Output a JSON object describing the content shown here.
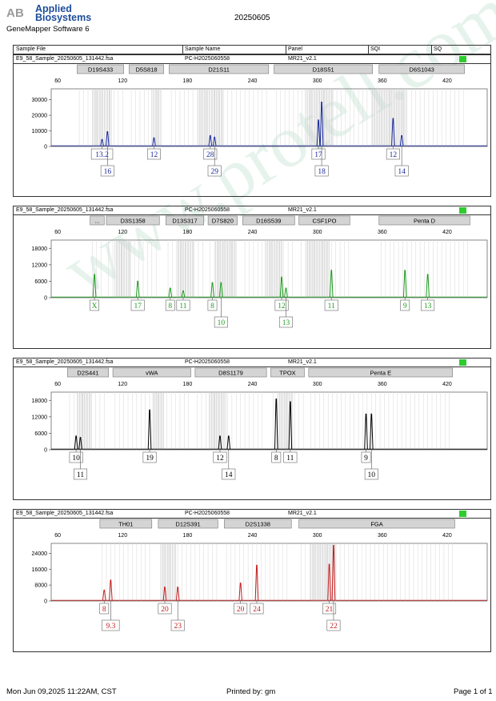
{
  "header": {
    "brand_line1": "Applied",
    "brand_line2": "Biosystems",
    "software": "GeneMapper Software 6",
    "date": "20250605"
  },
  "columns": [
    "Sample File",
    "Sample Name",
    "Panel",
    "SQI",
    "SQ"
  ],
  "footer": {
    "left": "Mon Jun 09,2025 11:22AM, CST",
    "mid": "Printed by: gm",
    "right": "Page 1 of 1"
  },
  "watermark": "www.protell.com.cn",
  "colors": {
    "blue": "#1a2a9a",
    "green": "#1f9a1f",
    "black": "#000000",
    "red": "#c41e1e",
    "bin": "#cccccc",
    "sqi": "#2ecc2e"
  },
  "panels": [
    {
      "sample_file": "E9_58_Sample_20250605_131442.fsa",
      "sample_name": "PC-H2025060558",
      "panel_name": "MR21_v2.1",
      "color": "blue",
      "markers": [
        {
          "name": "D19S433",
          "start": 78,
          "end": 121
        },
        {
          "name": "D5S818",
          "start": 126,
          "end": 158
        },
        {
          "name": "D21S11",
          "start": 163,
          "end": 255
        },
        {
          "name": "D18S51",
          "start": 260,
          "end": 351
        },
        {
          "name": "D6S1043",
          "start": 357,
          "end": 436
        }
      ],
      "chart_data": {
        "type": "line",
        "xlabel": "",
        "ylabel": "",
        "x_ticks": [
          60,
          120,
          180,
          240,
          300,
          360,
          420
        ],
        "y_ticks": [
          10000,
          20000,
          30000
        ],
        "xlim": [
          54,
          457
        ],
        "ylim": [
          0,
          37000
        ],
        "bins": [
          [
            92,
            110
          ],
          [
            147,
            155
          ],
          [
            190,
            214
          ],
          [
            289,
            315
          ],
          [
            351,
            382
          ]
        ],
        "peaks": [
          {
            "x": 101,
            "y": 4500
          },
          {
            "x": 106,
            "y": 9500
          },
          {
            "x": 149,
            "y": 5500
          },
          {
            "x": 201,
            "y": 7000
          },
          {
            "x": 205,
            "y": 6000
          },
          {
            "x": 301,
            "y": 17000
          },
          {
            "x": 304,
            "y": 28500
          },
          {
            "x": 370,
            "y": 18000
          },
          {
            "x": 378,
            "y": 7000
          }
        ],
        "alleles": [
          {
            "label": "13.2",
            "x": 101,
            "row": 0
          },
          {
            "label": "16",
            "x": 106,
            "row": 1
          },
          {
            "label": "12",
            "x": 149,
            "row": 0
          },
          {
            "label": "28",
            "x": 201,
            "row": 0
          },
          {
            "label": "29",
            "x": 205,
            "row": 1
          },
          {
            "label": "17",
            "x": 301,
            "row": 0
          },
          {
            "label": "18",
            "x": 304,
            "row": 1
          },
          {
            "label": "12",
            "x": 370,
            "row": 0
          },
          {
            "label": "14",
            "x": 378,
            "row": 1
          }
        ]
      }
    },
    {
      "sample_file": "E9_58_Sample_20250605_131442.fsa",
      "sample_name": "PC-H2025060558",
      "panel_name": "MR21_v2.1",
      "color": "green",
      "markers": [
        {
          "name": "...",
          "start": 90,
          "end": 103
        },
        {
          "name": "D3S1358",
          "start": 105,
          "end": 154
        },
        {
          "name": "D13S317",
          "start": 160,
          "end": 195
        },
        {
          "name": "D7S820",
          "start": 199,
          "end": 226
        },
        {
          "name": "D16S539",
          "start": 231,
          "end": 279
        },
        {
          "name": "CSF1PO",
          "start": 283,
          "end": 330
        },
        {
          "name": "Penta D",
          "start": 357,
          "end": 441
        }
      ],
      "chart_data": {
        "type": "line",
        "xlabel": "",
        "ylabel": "",
        "x_ticks": [
          60,
          120,
          180,
          240,
          300,
          360,
          420
        ],
        "y_ticks": [
          6000,
          12000,
          18000
        ],
        "xlim": [
          54,
          457
        ],
        "ylim": [
          0,
          21000
        ],
        "bins": [
          [
            113,
            128
          ],
          [
            170,
            186
          ],
          [
            205,
            225
          ],
          [
            252,
            268
          ],
          [
            290,
            312
          ]
        ],
        "peaks": [
          {
            "x": 94,
            "y": 8500
          },
          {
            "x": 134,
            "y": 6000
          },
          {
            "x": 164,
            "y": 3500
          },
          {
            "x": 176,
            "y": 2500
          },
          {
            "x": 203,
            "y": 5500
          },
          {
            "x": 211,
            "y": 5500
          },
          {
            "x": 267,
            "y": 7500
          },
          {
            "x": 271,
            "y": 3500
          },
          {
            "x": 313,
            "y": 10000
          },
          {
            "x": 381,
            "y": 10000
          },
          {
            "x": 402,
            "y": 8500
          }
        ],
        "alleles": [
          {
            "label": "X",
            "x": 94,
            "row": 0
          },
          {
            "label": "17",
            "x": 134,
            "row": 0
          },
          {
            "label": "8",
            "x": 164,
            "row": 0
          },
          {
            "label": "11",
            "x": 176,
            "row": 0
          },
          {
            "label": "8",
            "x": 203,
            "row": 0
          },
          {
            "label": "10",
            "x": 211,
            "row": 1
          },
          {
            "label": "12",
            "x": 267,
            "row": 0
          },
          {
            "label": "13",
            "x": 271,
            "row": 1
          },
          {
            "label": "11",
            "x": 313,
            "row": 0
          },
          {
            "label": "9",
            "x": 381,
            "row": 0
          },
          {
            "label": "13",
            "x": 402,
            "row": 0
          }
        ]
      }
    },
    {
      "sample_file": "E9_58_Sample_20250605_131442.fsa",
      "sample_name": "PC-H2025060558",
      "panel_name": "MR21_v2.1",
      "color": "black",
      "markers": [
        {
          "name": "D2S441",
          "start": 69,
          "end": 107
        },
        {
          "name": "vWA",
          "start": 111,
          "end": 183
        },
        {
          "name": "D8S1179",
          "start": 187,
          "end": 253
        },
        {
          "name": "TPOX",
          "start": 257,
          "end": 288
        },
        {
          "name": "Penta E",
          "start": 292,
          "end": 425
        }
      ],
      "chart_data": {
        "type": "line",
        "xlabel": "",
        "ylabel": "",
        "x_ticks": [
          60,
          120,
          180,
          240,
          300,
          360,
          420
        ],
        "y_ticks": [
          6000,
          12000,
          18000
        ],
        "xlim": [
          54,
          457
        ],
        "ylim": [
          0,
          21000
        ],
        "bins": [
          [
            78,
            92
          ],
          [
            148,
            158
          ],
          [
            200,
            216
          ],
          [
            264,
            278
          ]
        ],
        "peaks": [
          {
            "x": 77,
            "y": 5000
          },
          {
            "x": 81,
            "y": 4500
          },
          {
            "x": 145,
            "y": 14500
          },
          {
            "x": 210,
            "y": 5000
          },
          {
            "x": 218,
            "y": 5000
          },
          {
            "x": 262,
            "y": 18500
          },
          {
            "x": 275,
            "y": 17500
          },
          {
            "x": 345,
            "y": 13000
          },
          {
            "x": 350,
            "y": 13000
          }
        ],
        "alleles": [
          {
            "label": "10",
            "x": 77,
            "row": 0
          },
          {
            "label": "11",
            "x": 81,
            "row": 1
          },
          {
            "label": "19",
            "x": 145,
            "row": 0
          },
          {
            "label": "12",
            "x": 210,
            "row": 0
          },
          {
            "label": "14",
            "x": 218,
            "row": 1
          },
          {
            "label": "8",
            "x": 262,
            "row": 0
          },
          {
            "label": "11",
            "x": 275,
            "row": 0
          },
          {
            "label": "9",
            "x": 345,
            "row": 0
          },
          {
            "label": "10",
            "x": 350,
            "row": 1
          }
        ]
      }
    },
    {
      "sample_file": "E9_58_Sample_20250605_131442.fsa",
      "sample_name": "PC-H2025060558",
      "panel_name": "MR21_v2.1",
      "color": "red",
      "markers": [
        {
          "name": "TH01",
          "start": 99,
          "end": 147
        },
        {
          "name": "D12S391",
          "start": 153,
          "end": 208
        },
        {
          "name": "D2S1338",
          "start": 214,
          "end": 276
        },
        {
          "name": "FGA",
          "start": 283,
          "end": 427
        }
      ],
      "chart_data": {
        "type": "line",
        "xlabel": "",
        "ylabel": "",
        "x_ticks": [
          60,
          120,
          180,
          240,
          300,
          360,
          420
        ],
        "y_ticks": [
          8000,
          16000,
          24000
        ],
        "xlim": [
          54,
          457
        ],
        "ylim": [
          0,
          29000
        ],
        "bins": [
          [
            156,
            170
          ],
          [
            293,
            318
          ]
        ],
        "peaks": [
          {
            "x": 103,
            "y": 5500
          },
          {
            "x": 109,
            "y": 10500
          },
          {
            "x": 159,
            "y": 7000
          },
          {
            "x": 171,
            "y": 7000
          },
          {
            "x": 229,
            "y": 9000
          },
          {
            "x": 244,
            "y": 18000
          },
          {
            "x": 311,
            "y": 18500
          },
          {
            "x": 315,
            "y": 28000
          }
        ],
        "alleles": [
          {
            "label": "8",
            "x": 103,
            "row": 0
          },
          {
            "label": "9.3",
            "x": 109,
            "row": 1
          },
          {
            "label": "20",
            "x": 159,
            "row": 0
          },
          {
            "label": "23",
            "x": 171,
            "row": 1
          },
          {
            "label": "20",
            "x": 229,
            "row": 0
          },
          {
            "label": "24",
            "x": 244,
            "row": 0
          },
          {
            "label": "21",
            "x": 311,
            "row": 0
          },
          {
            "label": "22",
            "x": 315,
            "row": 1
          }
        ]
      }
    }
  ]
}
